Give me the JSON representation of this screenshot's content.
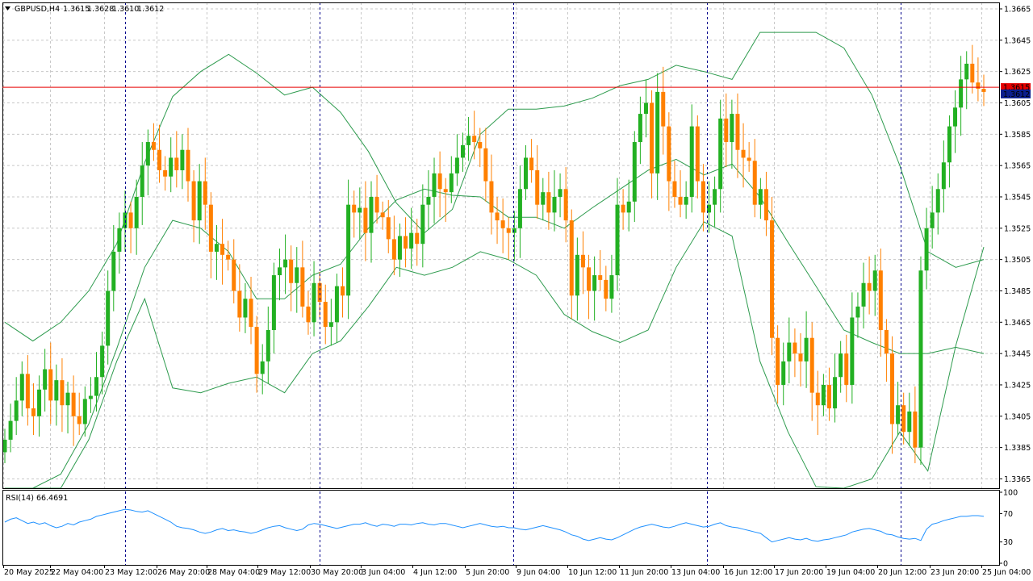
{
  "header": {
    "symbol": "GBPUSD,H4",
    "open": "1.3615",
    "high": "1.3628",
    "low": "1.3610",
    "close": "1.3612"
  },
  "rsi_panel": {
    "label": "RSI(14) 66.4691",
    "levels": [
      "100",
      "70",
      "30",
      "0"
    ]
  },
  "colors": {
    "bull": "#22b022",
    "bear": "#ff8000",
    "bands": "#2e9b4e",
    "rsi": "#1e90ff",
    "grid": "#c8c8c8",
    "separator": "#00008b",
    "price_line": "#e60000",
    "bid_badge": "#0b1e8c",
    "ask_badge": "#e60000"
  },
  "price_badges": {
    "ask": "1.3615",
    "bid": "1.3612"
  },
  "chart_data": [
    {
      "type": "candlestick",
      "title": "GBPUSD,H4",
      "y_ticks": [
        "1.3665",
        "1.3645",
        "1.3625",
        "1.3605",
        "1.3585",
        "1.3565",
        "1.3545",
        "1.3525",
        "1.3505",
        "1.3485",
        "1.3465",
        "1.3445",
        "1.3425",
        "1.3405",
        "1.3385",
        "1.3365"
      ],
      "ylim": [
        1.336,
        1.367
      ],
      "x_ticks": [
        "20 May 2025",
        "22 May 04:00",
        "23 May 12:00",
        "26 May 20:00",
        "28 May 04:00",
        "29 May 12:00",
        "30 May 20:00",
        "3 Jun 04:00",
        "4 Jun 12:00",
        "5 Jun 20:00",
        "9 Jun 04:00",
        "10 Jun 12:00",
        "11 Jun 20:00",
        "13 Jun 04:00",
        "16 Jun 12:00",
        "17 Jun 20:00",
        "19 Jun 04:00",
        "20 Jun 12:00",
        "23 Jun 20:00",
        "25 Jun 04:00"
      ],
      "indicators": [
        "Bollinger Bands"
      ],
      "close_series": [
        1.339,
        1.3402,
        1.3415,
        1.3432,
        1.341,
        1.3405,
        1.3422,
        1.3435,
        1.3415,
        1.3428,
        1.3412,
        1.342,
        1.3405,
        1.34,
        1.3416,
        1.3418,
        1.343,
        1.345,
        1.3485,
        1.351,
        1.3525,
        1.3535,
        1.3525,
        1.3545,
        1.3565,
        1.358,
        1.3575,
        1.3562,
        1.3558,
        1.357,
        1.3562,
        1.3575,
        1.3555,
        1.353,
        1.3555,
        1.354,
        1.351,
        1.3515,
        1.3508,
        1.3505,
        1.3485,
        1.3468,
        1.348,
        1.3462,
        1.3432,
        1.344,
        1.346,
        1.3495,
        1.35,
        1.3505,
        1.349,
        1.35,
        1.3475,
        1.3465,
        1.349,
        1.3478,
        1.3462,
        1.3465,
        1.3488,
        1.3482,
        1.354,
        1.3535,
        1.3538,
        1.3522,
        1.3545,
        1.3535,
        1.3532,
        1.3518,
        1.3505,
        1.352,
        1.3512,
        1.3522,
        1.3515,
        1.354,
        1.3545,
        1.356,
        1.355,
        1.3548,
        1.356,
        1.357,
        1.3578,
        1.3584,
        1.358,
        1.3576,
        1.3555,
        1.3535,
        1.353,
        1.3525,
        1.3522,
        1.3525,
        1.355,
        1.357,
        1.3562,
        1.354,
        1.3548,
        1.3535,
        1.3545,
        1.355,
        1.353,
        1.3482,
        1.3508,
        1.35,
        1.3485,
        1.3495,
        1.3492,
        1.348,
        1.3495,
        1.354,
        1.3535,
        1.3542,
        1.358,
        1.3598,
        1.3605,
        1.356,
        1.3612,
        1.359,
        1.3555,
        1.3545,
        1.354,
        1.3545,
        1.359,
        1.3555,
        1.3535,
        1.354,
        1.355,
        1.3595,
        1.358,
        1.3598,
        1.3575,
        1.357,
        1.3568,
        1.354,
        1.355,
        1.353,
        1.3455,
        1.3425,
        1.344,
        1.3452,
        1.3445,
        1.344,
        1.3455,
        1.342,
        1.3412,
        1.3425,
        1.341,
        1.343,
        1.3445,
        1.3425,
        1.3468,
        1.3475,
        1.349,
        1.3485,
        1.3498,
        1.346,
        1.3445,
        1.34,
        1.3412,
        1.3395,
        1.3408,
        1.3385,
        1.3498,
        1.3525,
        1.3535,
        1.355,
        1.3567,
        1.359,
        1.3602,
        1.362,
        1.363,
        1.3618,
        1.3614,
        1.3612
      ],
      "bollinger_upper_approx": [
        1.3465,
        1.3453,
        1.3465,
        1.3485,
        1.3515,
        1.3567,
        1.3609,
        1.3625,
        1.3636,
        1.3624,
        1.361,
        1.3615,
        1.3599,
        1.3574,
        1.3541,
        1.3522,
        1.3537,
        1.3585,
        1.3601,
        1.3601,
        1.3603,
        1.3608,
        1.3616,
        1.362,
        1.3629,
        1.3625,
        1.362,
        1.365,
        1.365,
        1.365,
        1.364,
        1.361,
        1.3565,
        1.351,
        1.35,
        1.3505
      ],
      "bollinger_middle_approx": [
        1.3335,
        1.3348,
        1.3368,
        1.34,
        1.3448,
        1.35,
        1.353,
        1.3525,
        1.351,
        1.348,
        1.348,
        1.3495,
        1.3502,
        1.3525,
        1.3543,
        1.355,
        1.3546,
        1.3545,
        1.3532,
        1.3532,
        1.3525,
        1.3538,
        1.355,
        1.3562,
        1.3569,
        1.3559,
        1.3566,
        1.3545,
        1.3516,
        1.3488,
        1.346,
        1.3452,
        1.3445,
        1.3445,
        1.3449,
        1.3445
      ],
      "bollinger_lower_approx": [
        1.328,
        1.33,
        1.332,
        1.339,
        1.344,
        1.348,
        1.3423,
        1.342,
        1.3426,
        1.343,
        1.342,
        1.3445,
        1.3453,
        1.3475,
        1.35,
        1.3495,
        1.35,
        1.351,
        1.3505,
        1.3495,
        1.347,
        1.3459,
        1.3452,
        1.346,
        1.35,
        1.3529,
        1.352,
        1.344,
        1.3395,
        1.336,
        1.334,
        1.3365,
        1.3395,
        1.337,
        1.345,
        1.3513
      ]
    },
    {
      "type": "line",
      "title": "RSI(14) 66.4691",
      "y_ticks": [
        "100",
        "70",
        "30",
        "0"
      ],
      "ylim": [
        0,
        100
      ],
      "values_approx": [
        58,
        62,
        64,
        60,
        56,
        58,
        55,
        57,
        53,
        50,
        52,
        56,
        54,
        58,
        60,
        62,
        66,
        68,
        70,
        72,
        74,
        76,
        75,
        73,
        72,
        74,
        70,
        66,
        62,
        58,
        52,
        50,
        49,
        47,
        44,
        42,
        44,
        47,
        49,
        46,
        47,
        45,
        44,
        42,
        44,
        47,
        50,
        52,
        53,
        50,
        48,
        46,
        48,
        54,
        56,
        55,
        53,
        51,
        49,
        51,
        53,
        55,
        55,
        57,
        54,
        52,
        55,
        54,
        52,
        55,
        55,
        54,
        56,
        57,
        55,
        54,
        56,
        56,
        54,
        52,
        50,
        52,
        54,
        56,
        54,
        52,
        51,
        52,
        50,
        50,
        48,
        47,
        49,
        51,
        53,
        51,
        49,
        47,
        44,
        40,
        38,
        34,
        32,
        34,
        36,
        34,
        33,
        36,
        40,
        44,
        48,
        51,
        53,
        55,
        53,
        51,
        50,
        52,
        55,
        57,
        55,
        53,
        51,
        52,
        55,
        57,
        53,
        51,
        50,
        48,
        46,
        44,
        42,
        36,
        30,
        32,
        34,
        36,
        34,
        33,
        35,
        32,
        31,
        33,
        34,
        36,
        38,
        40,
        44,
        46,
        48,
        49,
        47,
        45,
        41,
        40,
        37,
        35,
        34,
        35,
        32,
        48,
        55,
        57,
        60,
        62,
        64,
        66,
        66,
        67,
        67,
        66
      ]
    }
  ]
}
